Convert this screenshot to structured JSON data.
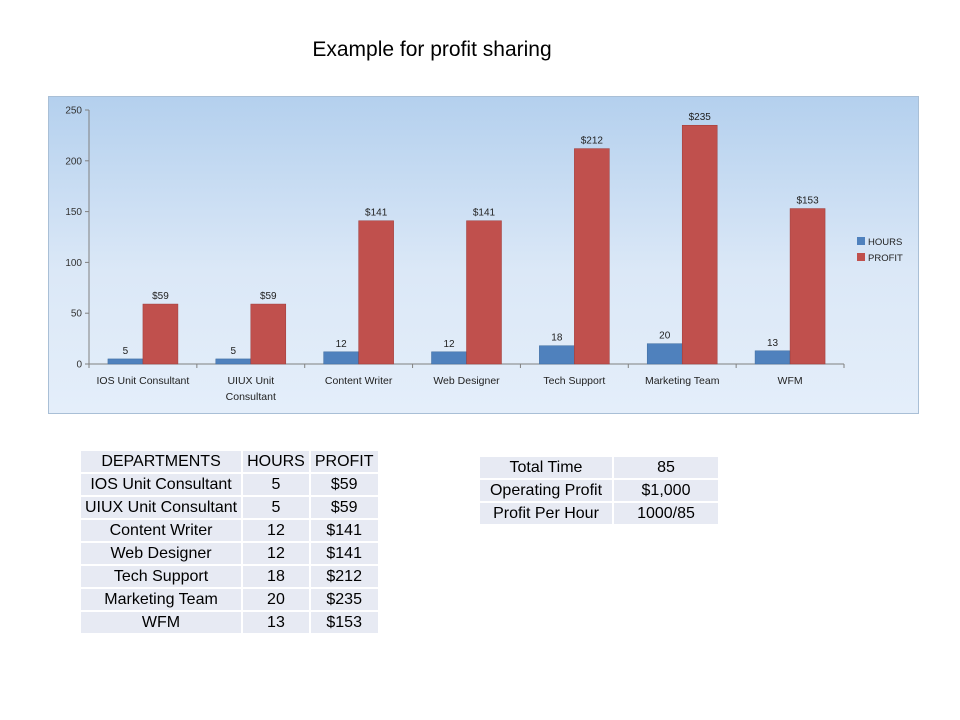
{
  "page_title": "Example for profit sharing",
  "chart_data": {
    "type": "bar",
    "title": "",
    "xlabel": "",
    "ylabel": "",
    "ylim": [
      0,
      250
    ],
    "yticks": [
      0,
      50,
      100,
      150,
      200,
      250
    ],
    "categories": [
      [
        "IOS Unit Consultant"
      ],
      [
        "UIUX Unit",
        "Consultant"
      ],
      [
        "Content Writer"
      ],
      [
        "Web Designer"
      ],
      [
        "Tech Support"
      ],
      [
        "Marketing Team"
      ],
      [
        "WFM"
      ]
    ],
    "series": [
      {
        "name": "HOURS",
        "color": "#4f81bd",
        "values": [
          5,
          5,
          12,
          12,
          18,
          20,
          13
        ],
        "labels": [
          "5",
          "5",
          "12",
          "12",
          "18",
          "20",
          "13"
        ]
      },
      {
        "name": "PROFIT",
        "color": "#c0504d",
        "values": [
          59,
          59,
          141,
          141,
          212,
          235,
          153
        ],
        "labels": [
          "$59",
          "$59",
          "$141",
          "$141",
          "$212",
          "$235",
          "$153"
        ]
      }
    ],
    "legend_position": "right",
    "grid": false
  },
  "departments_table": {
    "headers": [
      "DEPARTMENTS",
      "HOURS",
      "PROFIT"
    ],
    "rows": [
      [
        "IOS Unit Consultant",
        "5",
        "$59"
      ],
      [
        "UIUX Unit Consultant",
        "5",
        "$59"
      ],
      [
        "Content Writer",
        "12",
        "$141"
      ],
      [
        "Web Designer",
        "12",
        "$141"
      ],
      [
        "Tech Support",
        "18",
        "$212"
      ],
      [
        "Marketing Team",
        "20",
        "$235"
      ],
      [
        "WFM",
        "13",
        "$153"
      ]
    ]
  },
  "summary_table": {
    "rows": [
      [
        "Total Time",
        "85"
      ],
      [
        "Operating Profit",
        "$1,000"
      ],
      [
        "Profit Per Hour",
        "1000/85"
      ]
    ]
  }
}
